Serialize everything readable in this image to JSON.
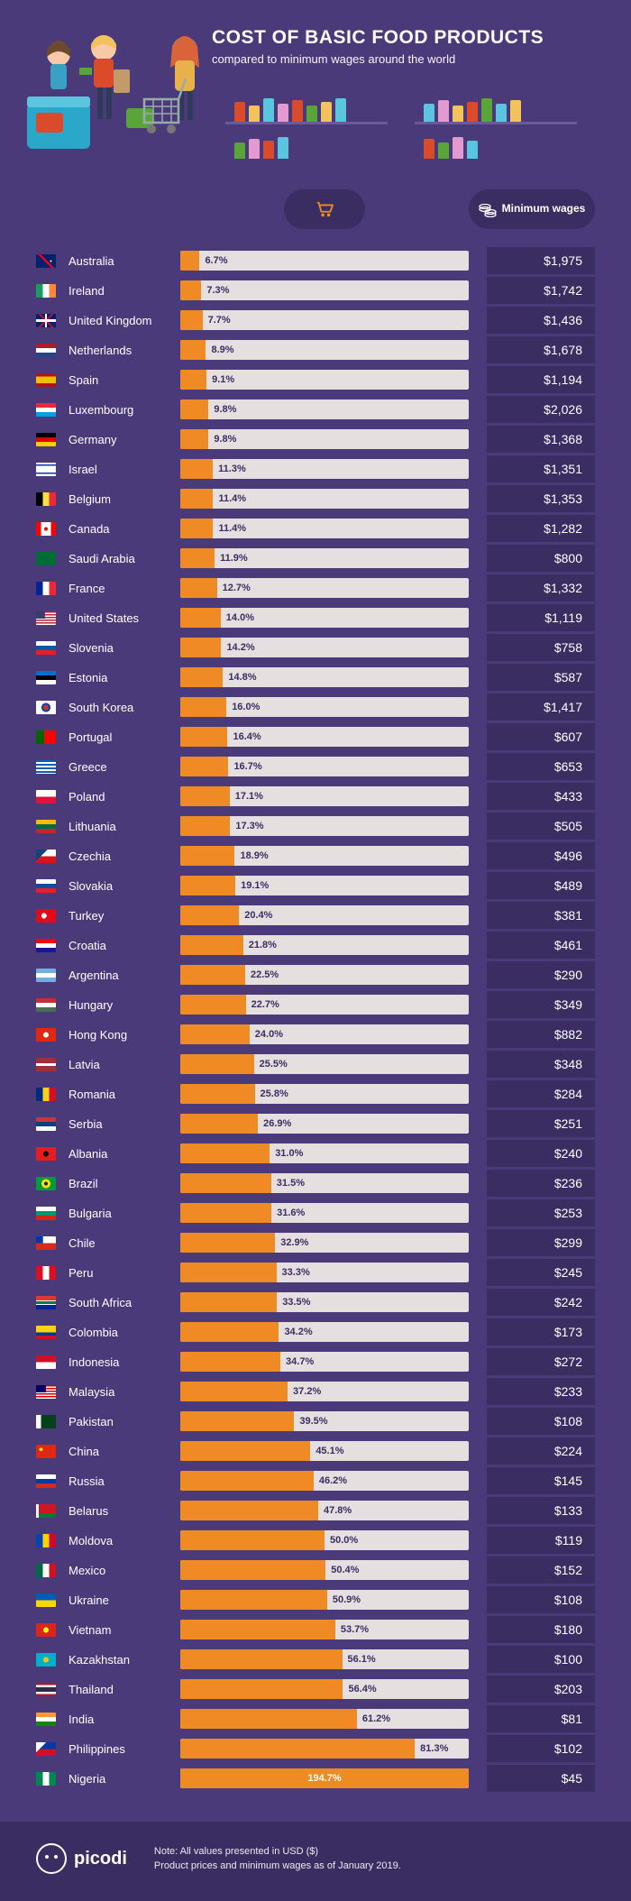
{
  "meta": {
    "title": "COST OF BASIC FOOD PRODUCTS",
    "subtitle": "compared to minimum wages around the world",
    "note_line1": "Note: All values presented in USD ($)",
    "note_line2": "Product prices and minimum wages as of January 2019.",
    "brand": "picodi"
  },
  "columns": {
    "wage_label": "Minimum wages"
  },
  "style": {
    "bg": "#4a3a7a",
    "panel": "#3a2d62",
    "bar_track": "#e5e0df",
    "bar_fill": "#f08a24",
    "text": "#ffffff",
    "bar_label_outside": "#3a2d62",
    "bar_label_inside": "#ffffff",
    "font_country": 13,
    "font_wage": 14,
    "font_barlabel": 11,
    "bar_scale_max_pct": 100
  },
  "countries": [
    {
      "name": "Australia",
      "pct": 6.7,
      "wage": "$1,975",
      "flag": "linear-gradient(180deg,#012169 50%,#012169 50%)",
      "flag_overlay": "radial-gradient(circle at 75% 50%, #fff 1px, transparent 1px), linear-gradient(45deg, transparent 45%, #e4002b 45%, #e4002b 55%, transparent 55%)"
    },
    {
      "name": "Ireland",
      "pct": 7.3,
      "wage": "$1,742",
      "flag": "linear-gradient(90deg,#169b62 33%,#fff 33%,#fff 66%,#ff883e 66%)"
    },
    {
      "name": "United Kingdom",
      "pct": 7.7,
      "wage": "$1,436",
      "flag": "linear-gradient(#012169,#012169)",
      "flag_overlay": "linear-gradient(0deg,transparent 40%,#fff 40%,#fff 60%,transparent 60%),linear-gradient(90deg,transparent 45%,#fff 45%,#fff 55%,transparent 55%),linear-gradient(45deg,transparent 47%,#c8102e 47%,#c8102e 53%,transparent 53%),linear-gradient(-45deg,transparent 47%,#c8102e 47%,#c8102e 53%,transparent 53%)"
    },
    {
      "name": "Netherlands",
      "pct": 8.9,
      "wage": "$1,678",
      "flag": "linear-gradient(180deg,#ae1c28 33%,#fff 33%,#fff 66%,#21468b 66%)"
    },
    {
      "name": "Spain",
      "pct": 9.1,
      "wage": "$1,194",
      "flag": "linear-gradient(180deg,#aa151b 25%,#f1bf00 25%,#f1bf00 75%,#aa151b 75%)"
    },
    {
      "name": "Luxembourg",
      "pct": 9.8,
      "wage": "$2,026",
      "flag": "linear-gradient(180deg,#ed2939 33%,#fff 33%,#fff 66%,#00a1de 66%)"
    },
    {
      "name": "Germany",
      "pct": 9.8,
      "wage": "$1,368",
      "flag": "linear-gradient(180deg,#000 33%,#dd0000 33%,#dd0000 66%,#ffce00 66%)"
    },
    {
      "name": "Israel",
      "pct": 11.3,
      "wage": "$1,351",
      "flag": "linear-gradient(180deg,#fff 15%,#0038b8 15%,#0038b8 25%,#fff 25%,#fff 75%,#0038b8 75%,#0038b8 85%,#fff 85%)"
    },
    {
      "name": "Belgium",
      "pct": 11.4,
      "wage": "$1,353",
      "flag": "linear-gradient(90deg,#000 33%,#fae042 33%,#fae042 66%,#ed2939 66%)"
    },
    {
      "name": "Canada",
      "pct": 11.4,
      "wage": "$1,282",
      "flag": "linear-gradient(90deg,#ff0000 25%,#fff 25%,#fff 75%,#ff0000 75%)",
      "flag_overlay": "radial-gradient(circle at 50% 50%, #ff0000 2px, transparent 2px)"
    },
    {
      "name": "Saudi Arabia",
      "pct": 11.9,
      "wage": "$800",
      "flag": "linear-gradient(#006c35,#006c35)"
    },
    {
      "name": "France",
      "pct": 12.7,
      "wage": "$1,332",
      "flag": "linear-gradient(90deg,#002395 33%,#fff 33%,#fff 66%,#ed2939 66%)"
    },
    {
      "name": "United States",
      "pct": 14.0,
      "wage": "$1,119",
      "flag": "repeating-linear-gradient(180deg,#b22234 0,#b22234 1.5px,#fff 1.5px,#fff 3px)",
      "flag_overlay": "linear-gradient(#3c3b6e,#3c3b6e)",
      "flag_overlay_size": "45% 55%"
    },
    {
      "name": "Slovenia",
      "pct": 14.2,
      "wage": "$758",
      "flag": "linear-gradient(180deg,#fff 33%,#005da4 33%,#005da4 66%,#ed1c24 66%)"
    },
    {
      "name": "Estonia",
      "pct": 14.8,
      "wage": "$587",
      "flag": "linear-gradient(180deg,#0072ce 33%,#000 33%,#000 66%,#fff 66%)"
    },
    {
      "name": "South Korea",
      "pct": 16.0,
      "wage": "$1,417",
      "flag": "linear-gradient(#fff,#fff)",
      "flag_overlay": "radial-gradient(circle at 50% 50%, #cd2e3a 3px, #0047a0 3px, #0047a0 5px, transparent 5px)"
    },
    {
      "name": "Portugal",
      "pct": 16.4,
      "wage": "$607",
      "flag": "linear-gradient(90deg,#006600 40%,#ff0000 40%)"
    },
    {
      "name": "Greece",
      "pct": 16.7,
      "wage": "$653",
      "flag": "repeating-linear-gradient(180deg,#0d5eaf 0,#0d5eaf 2px,#fff 2px,#fff 4px)"
    },
    {
      "name": "Poland",
      "pct": 17.1,
      "wage": "$433",
      "flag": "linear-gradient(180deg,#fff 50%,#dc143c 50%)"
    },
    {
      "name": "Lithuania",
      "pct": 17.3,
      "wage": "$505",
      "flag": "linear-gradient(180deg,#fdb913 33%,#006a44 33%,#006a44 66%,#c1272d 66%)"
    },
    {
      "name": "Czechia",
      "pct": 18.9,
      "wage": "$496",
      "flag": "linear-gradient(180deg,#fff 50%,#d7141a 50%)",
      "flag_overlay": "linear-gradient(135deg,#11457e 35%,transparent 35%)"
    },
    {
      "name": "Slovakia",
      "pct": 19.1,
      "wage": "$489",
      "flag": "linear-gradient(180deg,#fff 33%,#0b4ea2 33%,#0b4ea2 66%,#ee1c25 66%)"
    },
    {
      "name": "Turkey",
      "pct": 20.4,
      "wage": "$381",
      "flag": "linear-gradient(#e30a17,#e30a17)",
      "flag_overlay": "radial-gradient(circle at 40% 50%, #fff 3px, transparent 3px)"
    },
    {
      "name": "Croatia",
      "pct": 21.8,
      "wage": "$461",
      "flag": "linear-gradient(180deg,#ff0000 33%,#fff 33%,#fff 66%,#171796 66%)"
    },
    {
      "name": "Argentina",
      "pct": 22.5,
      "wage": "$290",
      "flag": "linear-gradient(180deg,#74acdf 33%,#fff 33%,#fff 66%,#74acdf 66%)"
    },
    {
      "name": "Hungary",
      "pct": 22.7,
      "wage": "$349",
      "flag": "linear-gradient(180deg,#ce2939 33%,#fff 33%,#fff 66%,#477050 66%)"
    },
    {
      "name": "Hong Kong",
      "pct": 24.0,
      "wage": "$882",
      "flag": "linear-gradient(#de2910,#de2910)",
      "flag_overlay": "radial-gradient(circle at 50% 50%, #fff 3px, transparent 3px)"
    },
    {
      "name": "Latvia",
      "pct": 25.5,
      "wage": "$348",
      "flag": "linear-gradient(180deg,#9e3039 40%,#fff 40%,#fff 60%,#9e3039 60%)"
    },
    {
      "name": "Romania",
      "pct": 25.8,
      "wage": "$284",
      "flag": "linear-gradient(90deg,#002b7f 33%,#fcd116 33%,#fcd116 66%,#ce1126 66%)"
    },
    {
      "name": "Serbia",
      "pct": 26.9,
      "wage": "$251",
      "flag": "linear-gradient(180deg,#c6363c 33%,#0c4076 33%,#0c4076 66%,#fff 66%)"
    },
    {
      "name": "Albania",
      "pct": 31.0,
      "wage": "$240",
      "flag": "linear-gradient(#e41e20,#e41e20)",
      "flag_overlay": "radial-gradient(circle at 50% 50%, #000 3px, transparent 3px)"
    },
    {
      "name": "Brazil",
      "pct": 31.5,
      "wage": "$236",
      "flag": "linear-gradient(#009b3a,#009b3a)",
      "flag_overlay": "radial-gradient(circle at 50% 50%, #002776 2px, #fedf00 2px, #fedf00 5px, transparent 5px)"
    },
    {
      "name": "Bulgaria",
      "pct": 31.6,
      "wage": "$253",
      "flag": "linear-gradient(180deg,#fff 33%,#00966e 33%,#00966e 66%,#d62612 66%)"
    },
    {
      "name": "Chile",
      "pct": 32.9,
      "wage": "$299",
      "flag": "linear-gradient(180deg,#fff 50%,#d52b1e 50%)",
      "flag_overlay": "linear-gradient(#0039a6,#0039a6)",
      "flag_overlay_size": "35% 50%"
    },
    {
      "name": "Peru",
      "pct": 33.3,
      "wage": "$245",
      "flag": "linear-gradient(90deg,#d91023 33%,#fff 33%,#fff 66%,#d91023 66%)"
    },
    {
      "name": "South Africa",
      "pct": 33.5,
      "wage": "$242",
      "flag": "linear-gradient(180deg,#de3831 33%,#fff 33%,#fff 40%,#007a4d 40%,#007a4d 60%,#fff 60%,#fff 67%,#002395 67%)"
    },
    {
      "name": "Colombia",
      "pct": 34.2,
      "wage": "$173",
      "flag": "linear-gradient(180deg,#fcd116 50%,#003893 50%,#003893 75%,#ce1126 75%)"
    },
    {
      "name": "Indonesia",
      "pct": 34.7,
      "wage": "$272",
      "flag": "linear-gradient(180deg,#ce1126 50%,#fff 50%)"
    },
    {
      "name": "Malaysia",
      "pct": 37.2,
      "wage": "$233",
      "flag": "repeating-linear-gradient(180deg,#cc0001 0,#cc0001 1.5px,#fff 1.5px,#fff 3px)",
      "flag_overlay": "linear-gradient(#010066,#010066)",
      "flag_overlay_size": "50% 55%"
    },
    {
      "name": "Pakistan",
      "pct": 39.5,
      "wage": "$108",
      "flag": "linear-gradient(90deg,#fff 25%,#01411c 25%)"
    },
    {
      "name": "China",
      "pct": 45.1,
      "wage": "$224",
      "flag": "linear-gradient(#de2910,#de2910)",
      "flag_overlay": "radial-gradient(circle at 25% 35%, #ffde00 2px, transparent 2px)"
    },
    {
      "name": "Russia",
      "pct": 46.2,
      "wage": "$145",
      "flag": "linear-gradient(180deg,#fff 33%,#0039a6 33%,#0039a6 66%,#d52b1e 66%)"
    },
    {
      "name": "Belarus",
      "pct": 47.8,
      "wage": "$133",
      "flag": "linear-gradient(180deg,#ce1720 66%,#007c30 66%)",
      "flag_overlay": "linear-gradient(#fff,#fff)",
      "flag_overlay_size": "15% 100%"
    },
    {
      "name": "Moldova",
      "pct": 50.0,
      "wage": "$119",
      "flag": "linear-gradient(90deg,#0046ae 33%,#ffd200 33%,#ffd200 66%,#cc092f 66%)"
    },
    {
      "name": "Mexico",
      "pct": 50.4,
      "wage": "$152",
      "flag": "linear-gradient(90deg,#006847 33%,#fff 33%,#fff 66%,#ce1126 66%)"
    },
    {
      "name": "Ukraine",
      "pct": 50.9,
      "wage": "$108",
      "flag": "linear-gradient(180deg,#005bbb 50%,#ffd500 50%)"
    },
    {
      "name": "Vietnam",
      "pct": 53.7,
      "wage": "$180",
      "flag": "linear-gradient(#da251d,#da251d)",
      "flag_overlay": "radial-gradient(circle at 50% 50%, #ffff00 3px, transparent 3px)"
    },
    {
      "name": "Kazakhstan",
      "pct": 56.1,
      "wage": "$100",
      "flag": "linear-gradient(#00afca,#00afca)",
      "flag_overlay": "radial-gradient(circle at 50% 50%, #fec50c 3px, transparent 3px)"
    },
    {
      "name": "Thailand",
      "pct": 56.4,
      "wage": "$203",
      "flag": "linear-gradient(180deg,#a51931 17%,#f4f5f8 17%,#f4f5f8 33%,#2d2a4a 33%,#2d2a4a 67%,#f4f5f8 67%,#f4f5f8 83%,#a51931 83%)"
    },
    {
      "name": "India",
      "pct": 61.2,
      "wage": "$81",
      "flag": "linear-gradient(180deg,#ff9933 33%,#fff 33%,#fff 66%,#138808 66%)"
    },
    {
      "name": "Philippines",
      "pct": 81.3,
      "wage": "$102",
      "flag": "linear-gradient(180deg,#0038a8 50%,#ce1126 50%)",
      "flag_overlay": "linear-gradient(135deg,#fff 30%,transparent 30%)"
    },
    {
      "name": "Nigeria",
      "pct": 194.7,
      "wage": "$45",
      "flag": "linear-gradient(90deg,#008751 33%,#fff 33%,#fff 66%,#008751 66%)"
    }
  ]
}
